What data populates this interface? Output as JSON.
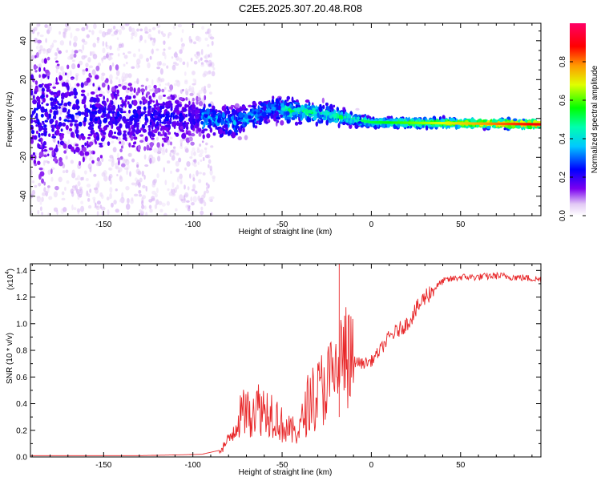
{
  "title": "C2E5.2025.307.20.48.R08",
  "chart_data": [
    {
      "type": "heatmap",
      "title": "C2E5.2025.307.20.48.R08",
      "xlabel": "Height of straight line (km)",
      "ylabel": "Frequency (Hz)",
      "xlim": [
        -191,
        95
      ],
      "ylim": [
        -50,
        49
      ],
      "xticks": [
        -150,
        -100,
        -50,
        0,
        50
      ],
      "xtick_labels": [
        "-150",
        "-100",
        "-50",
        "0",
        "50"
      ],
      "yticks": [
        -40,
        -20,
        0,
        20,
        40
      ],
      "ytick_labels": [
        "-40",
        "-20",
        "0",
        "20",
        "40"
      ],
      "colorbar": {
        "label": "Normalized spectral amplitude",
        "range": [
          0,
          1
        ],
        "ticks": [
          0,
          0.2,
          0.4,
          0.6,
          0.8
        ],
        "tick_labels": [
          "0.0",
          "0.2",
          "0.4",
          "0.6",
          "0.8"
        ],
        "colormap": "rainbow (white-purple-blue-cyan-green-yellow-red-magenta)"
      },
      "trend": [
        {
          "height": -191,
          "freq_center": 2,
          "spread": 30
        },
        {
          "height": -95,
          "freq_center": 0,
          "spread": 8
        },
        {
          "height": -75,
          "freq_center": -2,
          "spread": 6
        },
        {
          "height": -55,
          "freq_center": 5,
          "spread": 5
        },
        {
          "height": -25,
          "freq_center": 2,
          "spread": 4
        },
        {
          "height": 0,
          "freq_center": -2,
          "spread": 2
        },
        {
          "height": 95,
          "freq_center": -3,
          "spread": 1.5
        }
      ]
    },
    {
      "type": "line",
      "xlabel": "Height of straight line (km)",
      "ylabel": "SNR (10 * v/v)",
      "y_multiplier": "(x10",
      "y_multiplier_exp": "4",
      "y_multiplier_close": ")",
      "xlim": [
        -191,
        95
      ],
      "ylim": [
        0,
        1.45
      ],
      "xticks": [
        -150,
        -100,
        -50,
        0,
        50
      ],
      "xtick_labels": [
        "-150",
        "-100",
        "-50",
        "0",
        "50"
      ],
      "yticks": [
        0,
        0.2,
        0.4,
        0.6,
        0.8,
        1.0,
        1.2,
        1.4
      ],
      "ytick_labels": [
        "0.0",
        "0.2",
        "0.4",
        "0.6",
        "0.8",
        "1.0",
        "1.2",
        "1.4"
      ],
      "color": "#e8282a",
      "series": [
        {
          "name": "SNR",
          "x": [
            -191,
            -170,
            -150,
            -130,
            -110,
            -95,
            -85,
            -80,
            -75,
            -70,
            -65,
            -60,
            -55,
            -50,
            -45,
            -40,
            -35,
            -30,
            -25,
            -20,
            -18,
            -15,
            -10,
            -5,
            0,
            5,
            10,
            15,
            20,
            25,
            30,
            40,
            50,
            60,
            70,
            80,
            90,
            95
          ],
          "y": [
            0.01,
            0.01,
            0.01,
            0.01,
            0.015,
            0.02,
            0.05,
            0.12,
            0.28,
            0.35,
            0.4,
            0.38,
            0.36,
            0.25,
            0.2,
            0.22,
            0.45,
            0.5,
            0.6,
            0.62,
            0.75,
            0.8,
            0.72,
            0.7,
            0.72,
            0.8,
            0.9,
            0.95,
            1.0,
            1.1,
            1.2,
            1.32,
            1.35,
            1.35,
            1.36,
            1.35,
            1.34,
            1.33
          ]
        }
      ]
    }
  ]
}
